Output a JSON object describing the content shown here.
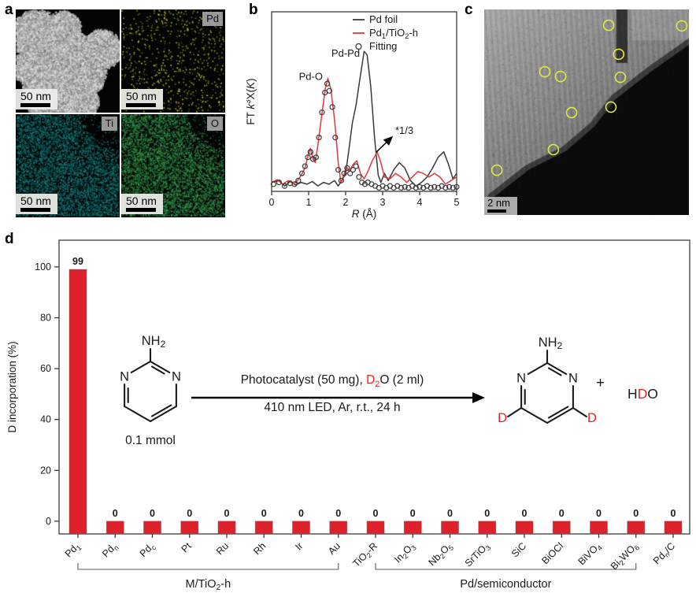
{
  "figure": {
    "background": "#ffffff",
    "panel_labels": {
      "a": "a",
      "b": "b",
      "c": "c",
      "d": "d"
    }
  },
  "colors": {
    "accent_red": "#e42328",
    "bar_red": "#dd222c",
    "curve_red": "#e0393e",
    "curve_black": "#3a3a3a",
    "eds_pd": "#c9c922",
    "eds_ti": "#0f7474",
    "eds_o": "#2e8f47",
    "circle_yellow": "#e4e83a"
  },
  "panel_a": {
    "tiles": [
      {
        "name": "haadf-stem",
        "kind": "stem",
        "element_label": "",
        "scalebar": "50 nm",
        "count": 26000
      },
      {
        "name": "pd-map",
        "kind": "dots",
        "element_label": "Pd",
        "scalebar": "50 nm",
        "dot_color": "#c9c922",
        "count": 680,
        "corner_mask": false,
        "dot_size": 1.6
      },
      {
        "name": "ti-map",
        "kind": "dots",
        "element_label": "Ti",
        "scalebar": "50 nm",
        "dot_color": "#0f7474",
        "count": 6800,
        "corner_mask": true,
        "dot_size": 1.5
      },
      {
        "name": "o-map",
        "kind": "dots",
        "element_label": "O",
        "scalebar": "50 nm",
        "dot_color": "#2e8f47",
        "count": 6800,
        "corner_mask": true,
        "dot_size": 1.5
      }
    ]
  },
  "panel_c": {
    "scalebar": "2 nm",
    "circle_color": "#e4e83a",
    "circles": [
      [
        0.608,
        0.077
      ],
      [
        0.965,
        0.08
      ],
      [
        0.657,
        0.218
      ],
      [
        0.296,
        0.303
      ],
      [
        0.373,
        0.326
      ],
      [
        0.665,
        0.33
      ],
      [
        0.619,
        0.475
      ],
      [
        0.427,
        0.502
      ],
      [
        0.338,
        0.682
      ],
      [
        0.062,
        0.782
      ]
    ]
  },
  "chart_data": [
    {
      "id": "exafs",
      "type": "line",
      "xlabel_parts": [
        {
          "t": "R",
          "i": 1
        },
        {
          "t": " (Å)"
        }
      ],
      "ylabel_parts": [
        {
          "t": "FT "
        },
        {
          "t": "k",
          "i": 1
        },
        {
          "t": "3",
          "sup": 1
        },
        {
          "t": "X("
        },
        {
          "t": "K",
          "i": 1
        },
        {
          "t": ")"
        }
      ],
      "xlim": [
        0,
        5
      ],
      "xticks": [
        "0",
        "1",
        "2",
        "3",
        "4",
        "5"
      ],
      "grid": false,
      "legend_position": "top-right",
      "legend": [
        {
          "parts": [
            {
              "t": "Pd foil"
            }
          ],
          "marker": "line",
          "color": "#3a3a3a"
        },
        {
          "parts": [
            {
              "t": "Pd"
            },
            {
              "t": "1",
              "sub": 1
            },
            {
              "t": "/TiO"
            },
            {
              "t": "2",
              "sub": 1
            },
            {
              "t": "-h"
            }
          ],
          "marker": "line",
          "color": "#e0393e"
        },
        {
          "parts": [
            {
              "t": "Fitting"
            }
          ],
          "marker": "circle",
          "color": "#3a3a3a"
        }
      ],
      "annotations": [
        {
          "text": "Pd-O",
          "r": 1.06,
          "v": 0.62,
          "anchor": "middle"
        },
        {
          "text": "Pd-Pd",
          "r": 2.0,
          "v": 0.75,
          "anchor": "middle"
        },
        {
          "text": "*1/3",
          "r": 3.34,
          "v": 0.32,
          "anchor": "start",
          "arrow": {
            "from_r": 2.83,
            "from_v": 0.219,
            "to_r": 3.255,
            "to_v": 0.303
          }
        }
      ],
      "series": [
        {
          "name": "Pd foil",
          "style": "line",
          "color": "#3a3a3a",
          "r": [
            0,
            0.2,
            0.35,
            0.5,
            0.65,
            0.8,
            0.95,
            1.1,
            1.25,
            1.4,
            1.55,
            1.7,
            1.8,
            1.9,
            2.0,
            2.08,
            2.18,
            2.28,
            2.38,
            2.5,
            2.58,
            2.68,
            2.78,
            2.88,
            2.95,
            3.05,
            3.15,
            3.3,
            3.45,
            3.6,
            3.75,
            3.9,
            4.05,
            4.2,
            4.35,
            4.5,
            4.65,
            4.78,
            4.9,
            5.0
          ],
          "v": [
            0.05,
            0.06,
            0.03,
            0.055,
            0.035,
            0.05,
            0.04,
            0.055,
            0.03,
            0.05,
            0.04,
            0.06,
            0.03,
            0.06,
            0.1,
            0.22,
            0.38,
            0.48,
            0.62,
            0.78,
            0.76,
            0.58,
            0.3,
            0.09,
            0.05,
            0.1,
            0.06,
            0.12,
            0.16,
            0.13,
            0.06,
            0.03,
            0.05,
            0.08,
            0.13,
            0.19,
            0.22,
            0.15,
            0.07,
            0.1
          ]
        },
        {
          "name": "Pd1/TiO2-h",
          "style": "line",
          "color": "#e0393e",
          "r": [
            0,
            0.15,
            0.3,
            0.45,
            0.6,
            0.7,
            0.8,
            0.9,
            1.0,
            1.05,
            1.12,
            1.18,
            1.25,
            1.35,
            1.45,
            1.52,
            1.6,
            1.7,
            1.8,
            1.87,
            1.95,
            2.02,
            2.1,
            2.2,
            2.3,
            2.4,
            2.5,
            2.6,
            2.72,
            2.85,
            2.95,
            3.05,
            3.2,
            3.35,
            3.5,
            3.65,
            3.8,
            3.95,
            4.1,
            4.25,
            4.4,
            4.55,
            4.7,
            4.85,
            5.0
          ],
          "v": [
            0.05,
            0.065,
            0.04,
            0.06,
            0.04,
            0.06,
            0.09,
            0.13,
            0.21,
            0.24,
            0.18,
            0.16,
            0.26,
            0.42,
            0.57,
            0.63,
            0.57,
            0.4,
            0.16,
            0.05,
            0.09,
            0.14,
            0.11,
            0.15,
            0.17,
            0.1,
            0.07,
            0.11,
            0.17,
            0.22,
            0.16,
            0.08,
            0.07,
            0.1,
            0.08,
            0.05,
            0.08,
            0.11,
            0.1,
            0.08,
            0.1,
            0.08,
            0.04,
            0.06,
            0.08
          ]
        },
        {
          "name": "Fitting",
          "style": "circles",
          "color": "#3a3a3a",
          "r": [
            0.05,
            0.2,
            0.35,
            0.5,
            0.62,
            0.72,
            0.82,
            0.9,
            0.98,
            1.05,
            1.12,
            1.2,
            1.28,
            1.36,
            1.44,
            1.5,
            1.56,
            1.64,
            1.72,
            1.8,
            1.88,
            1.96,
            2.04,
            2.12,
            2.2,
            2.28,
            2.36,
            2.44,
            2.52,
            2.6,
            2.7,
            2.8,
            2.9,
            3.0,
            3.1,
            3.2,
            3.3,
            3.4,
            3.5,
            3.6,
            3.7,
            3.8,
            3.9,
            4.0,
            4.1,
            4.2,
            4.3,
            4.4,
            4.5,
            4.6,
            4.7,
            4.8,
            4.9,
            5.0
          ],
          "v": [
            0.04,
            0.05,
            0.03,
            0.045,
            0.04,
            0.06,
            0.1,
            0.14,
            0.19,
            0.22,
            0.18,
            0.19,
            0.3,
            0.44,
            0.55,
            0.6,
            0.56,
            0.47,
            0.3,
            0.12,
            0.06,
            0.1,
            0.13,
            0.1,
            0.12,
            0.14,
            0.08,
            0.05,
            0.04,
            0.05,
            0.04,
            0.03,
            0.02,
            0.03,
            0.02,
            0.03,
            0.02,
            0.03,
            0.02,
            0.025,
            0.02,
            0.03,
            0.02,
            0.025,
            0.02,
            0.03,
            0.02,
            0.025,
            0.02,
            0.03,
            0.02,
            0.025,
            0.02,
            0.025
          ]
        }
      ]
    },
    {
      "id": "d_incorporation",
      "type": "bar",
      "ylabel": "D incorporation (%)",
      "yticks": [
        0,
        20,
        40,
        60,
        80,
        100
      ],
      "ylim": [
        -5,
        110.5
      ],
      "grid": false,
      "bar_color": "#dd222c",
      "values": [
        99,
        0,
        0,
        0,
        0,
        0,
        0,
        0,
        0,
        0,
        0,
        0,
        0,
        0,
        0,
        0,
        0
      ],
      "categories_parts": [
        [
          {
            "t": "Pd"
          },
          {
            "t": "1",
            "sub": 1
          }
        ],
        [
          {
            "t": "Pd"
          },
          {
            "t": "n",
            "sub": 1
          }
        ],
        [
          {
            "t": "Pd"
          },
          {
            "t": "c",
            "sub": 1
          }
        ],
        [
          {
            "t": "Pt"
          }
        ],
        [
          {
            "t": "Ru"
          }
        ],
        [
          {
            "t": "Rh"
          }
        ],
        [
          {
            "t": "Ir"
          }
        ],
        [
          {
            "t": "Au"
          }
        ],
        [
          {
            "t": "TiO"
          },
          {
            "t": "2",
            "sub": 1
          },
          {
            "t": "-R"
          }
        ],
        [
          {
            "t": "In"
          },
          {
            "t": "2",
            "sub": 1
          },
          {
            "t": "O"
          },
          {
            "t": "3",
            "sub": 1
          }
        ],
        [
          {
            "t": "Nb"
          },
          {
            "t": "2",
            "sub": 1
          },
          {
            "t": "O"
          },
          {
            "t": "5",
            "sub": 1
          }
        ],
        [
          {
            "t": "SrTiO"
          },
          {
            "t": "3",
            "sub": 1
          }
        ],
        [
          {
            "t": "SiC"
          }
        ],
        [
          {
            "t": "BiOCl"
          }
        ],
        [
          {
            "t": "BiVO"
          },
          {
            "t": "4",
            "sub": 1
          }
        ],
        [
          {
            "t": "Bi"
          },
          {
            "t": "2",
            "sub": 1
          },
          {
            "t": "WO"
          },
          {
            "t": "6",
            "sub": 1
          }
        ],
        [
          {
            "t": "Pd"
          },
          {
            "t": "n",
            "sub": 1
          },
          {
            "t": "/C"
          }
        ]
      ],
      "groups": [
        {
          "parts": [
            {
              "t": "M/TiO"
            },
            {
              "t": "2",
              "sub": 1
            },
            {
              "t": "-h"
            }
          ],
          "from": 0,
          "to": 7
        },
        {
          "parts": [
            {
              "t": "Pd/semiconductor"
            }
          ],
          "from": 8,
          "to": 15
        }
      ]
    }
  ],
  "reaction": {
    "above_arrow_parts": [
      {
        "t": "Photocatalyst (50 mg), "
      },
      {
        "t": "D",
        "red": 1
      },
      {
        "t": "2",
        "red": 1,
        "sub": 1
      },
      {
        "t": "O (2 ml)"
      }
    ],
    "below_arrow": "410 nm LED, Ar, r.t., 24 h",
    "amount": "0.1 mmol",
    "plus": "+",
    "byproduct_parts": [
      {
        "t": "H"
      },
      {
        "t": "D",
        "red": 1
      },
      {
        "t": "O"
      }
    ],
    "molecule": {
      "n_label": "N",
      "amine_parts": [
        {
          "t": "NH"
        },
        {
          "t": "2",
          "sub": 1
        }
      ],
      "d_label": "D"
    }
  }
}
